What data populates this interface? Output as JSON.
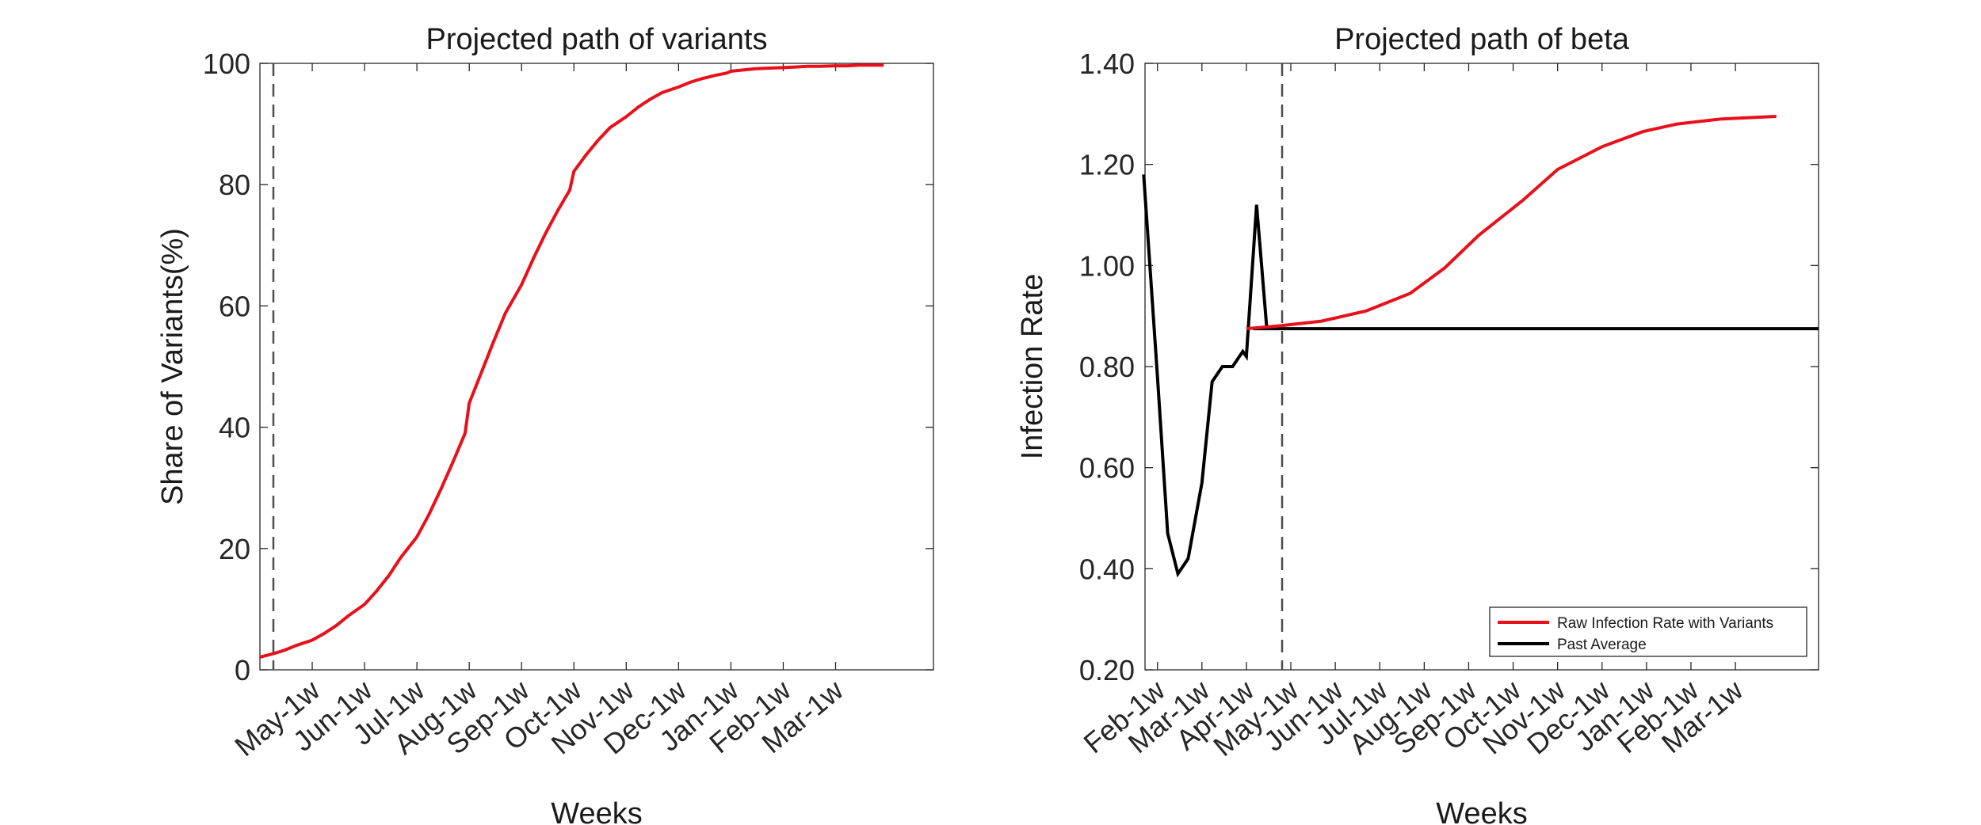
{
  "chart_data": [
    {
      "type": "line",
      "title": "Projected path of variants",
      "xlabel": "Weeks",
      "ylabel": "Share of Variants(%)",
      "ylim": [
        0,
        100
      ],
      "yticks": [
        "0",
        "20",
        "40",
        "60",
        "80",
        "100"
      ],
      "xticks": [
        "May-1w",
        "Jun-1w",
        "Jul-1w",
        "Aug-1w",
        "Sep-1w",
        "Oct-1w",
        "Nov-1w",
        "Dec-1w",
        "Jan-1w",
        "Feb-1w",
        "Mar-1w"
      ],
      "grid": false,
      "legend": null,
      "vline_label": "Apr-1w",
      "series": [
        {
          "color": "#e8101a",
          "x": [
            "Apr-1w",
            "Apr-2w",
            "Apr-3w",
            "Apr-4w",
            "May-1w",
            "May-2w",
            "May-3w",
            "May-4w",
            "Jun-1w",
            "Jun-2w",
            "Jun-3w",
            "Jun-4w",
            "Jul-1w",
            "Jul-2w",
            "Jul-3w",
            "Jul-4w",
            "Jul-5w",
            "Aug-1w",
            "Aug-2w",
            "Aug-3w",
            "Aug-4w",
            "Sep-1w",
            "Sep-2w",
            "Sep-3w",
            "Sep-4w",
            "Sep-5w",
            "Oct-1w",
            "Oct-2w",
            "Oct-3w",
            "Oct-4w",
            "Nov-1w",
            "Nov-2w",
            "Nov-3w",
            "Nov-4w",
            "Dec-1w",
            "Dec-2w",
            "Dec-3w",
            "Dec-4w",
            "Dec-5w",
            "Jan-1w",
            "Jan-2w",
            "Jan-3w",
            "Jan-4w",
            "Feb-1w",
            "Feb-2w",
            "Feb-3w",
            "Feb-4w",
            "Mar-1w",
            "Mar-2w",
            "Mar-3w",
            "Mar-4w",
            "Mar-5w"
          ],
          "y": [
            2.1,
            2.6,
            3.2,
            4.0,
            4.9,
            6.0,
            7.3,
            8.9,
            10.8,
            13.0,
            15.5,
            18.5,
            21.9,
            25.6,
            29.8,
            34.3,
            39.0,
            44.0,
            49.0,
            54.0,
            58.8,
            63.5,
            67.9,
            72.0,
            75.7,
            79.1,
            82.2,
            84.9,
            87.3,
            89.4,
            91.2,
            92.8,
            94.1,
            95.2,
            96.1,
            96.9,
            97.5,
            98.0,
            98.4,
            98.7,
            98.9,
            99.1,
            99.2,
            99.3,
            99.4,
            99.5,
            99.5,
            99.6,
            99.6,
            99.7,
            99.7,
            99.7
          ]
        }
      ]
    },
    {
      "type": "line",
      "title": "Projected path of beta",
      "xlabel": "Weeks",
      "ylabel": "Infection Rate",
      "ylim": [
        0.2,
        1.4
      ],
      "yticks": [
        "0.20",
        "0.40",
        "0.60",
        "0.80",
        "1.00",
        "1.20",
        "1.40"
      ],
      "xticks": [
        "Feb-1w",
        "Mar-1w",
        "Apr-1w",
        "May-1w",
        "Jun-1w",
        "Jul-1w",
        "Aug-1w",
        "Sep-1w",
        "Oct-1w",
        "Nov-1w",
        "Dec-1w",
        "Jan-1w",
        "Feb-1w",
        "Mar-1w"
      ],
      "grid": false,
      "legend": "bottom-right",
      "vline_label": "Apr-1w",
      "series": [
        {
          "name": "Raw Infection Rate with Variants",
          "color": "#e8101a",
          "x": [
            "Apr-1w",
            "Apr-4w",
            "May-4w",
            "Jun-4w",
            "Jul-4w",
            "Aug-3w",
            "Sep-2w",
            "Oct-2w",
            "Nov-1w",
            "Dec-1w",
            "Dec-5w",
            "Jan-4w",
            "Feb-4w",
            "Mar-5w"
          ],
          "y": [
            0.875,
            0.88,
            0.89,
            0.91,
            0.945,
            0.995,
            1.06,
            1.13,
            1.19,
            1.235,
            1.265,
            1.28,
            1.29,
            1.295
          ]
        },
        {
          "name": "Past Average",
          "color": "#000000",
          "x": [
            "Jan-4w",
            "Feb-1w",
            "Feb-2w",
            "Feb-3w",
            "Feb-4w",
            "Mar-1w",
            "Mar-2w",
            "Mar-3w",
            "Mar-4w",
            "Mar-5w",
            "Apr-1w",
            "Apr-2w",
            "Apr-3w",
            "Mar-5w-next"
          ],
          "y": [
            1.18,
            0.78,
            0.47,
            0.39,
            0.42,
            0.57,
            0.77,
            0.8,
            0.8,
            0.83,
            0.82,
            1.12,
            0.875,
            0.875
          ]
        }
      ]
    }
  ]
}
